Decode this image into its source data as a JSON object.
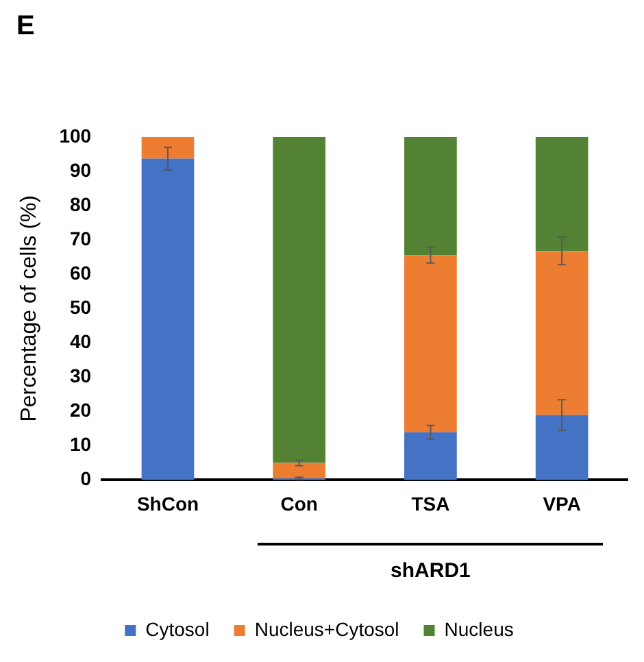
{
  "chart_data": {
    "type": "bar",
    "stacked": true,
    "ylabel": "Percentage of cells (%)",
    "categories": [
      "ShCon",
      "Con",
      "TSA",
      "VPA"
    ],
    "ylim": [
      0,
      100
    ],
    "yticks": [
      0,
      10,
      20,
      30,
      40,
      50,
      60,
      70,
      80,
      90,
      100
    ],
    "grid": false,
    "legend": "bottom",
    "annotations": [
      "E",
      "shARD1"
    ],
    "series": [
      {
        "name": "Cytosol",
        "color": "#4472c4",
        "values": [
          93.7,
          0.5,
          13.9,
          18.9
        ],
        "errors": [
          3.3,
          0.3,
          2,
          4.5
        ]
      },
      {
        "name": "Nucleus+Cytosol",
        "color": "#ed7d31",
        "values": [
          6.3,
          4.5,
          51.7,
          47.9
        ],
        "errors": [
          null,
          0.8,
          2.3,
          4
        ]
      },
      {
        "name": "Nucleus",
        "color": "#548235",
        "values": [
          0,
          95,
          34.4,
          33.2
        ],
        "errors": [
          null,
          null,
          null,
          null
        ]
      }
    ]
  }
}
